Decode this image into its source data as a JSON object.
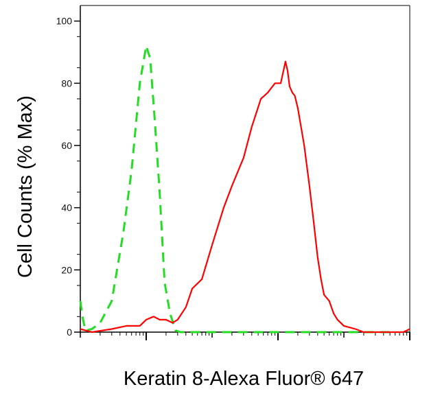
{
  "chart_data": {
    "type": "line",
    "xlabel": "Keratin 8-Alexa Fluor® 647",
    "ylabel": "Cell Counts (% Max)",
    "xscale": "log",
    "xlim": [
      0.1,
      10000
    ],
    "ylim": [
      0,
      105
    ],
    "y_ticks": [
      0,
      20,
      40,
      60,
      80,
      100
    ],
    "y_tick_labels": [
      "0",
      "20",
      "40",
      "60",
      "80",
      "100"
    ],
    "x_major_ticks": [
      1,
      100,
      10000
    ],
    "x_tick_labels_shown": false,
    "grid": false,
    "legend": "none",
    "series": [
      {
        "color": "#22dd22",
        "style": "dashed",
        "x": [
          0.1,
          0.11,
          0.12,
          0.15,
          0.2,
          0.3,
          0.45,
          0.6,
          0.8,
          1.0,
          1.15,
          1.35,
          1.6,
          1.9,
          2.3,
          2.8,
          3.3,
          4,
          10,
          100,
          1000,
          5000
        ],
        "y": [
          10,
          4,
          0.5,
          1,
          3,
          10,
          32,
          52,
          80,
          92,
          88,
          68,
          45,
          16,
          6,
          0.5,
          0,
          0,
          0,
          0,
          0,
          0
        ]
      },
      {
        "color": "#ff0000",
        "style": "solid",
        "x": [
          0.1,
          0.15,
          0.3,
          0.5,
          0.8,
          1.0,
          1.3,
          1.6,
          2.0,
          2.5,
          3.0,
          4.0,
          5.0,
          7.0,
          10,
          15,
          20,
          30,
          40,
          55,
          70,
          90,
          110,
          130,
          140,
          150,
          165,
          180,
          200,
          250,
          300,
          350,
          400,
          450,
          500,
          600,
          700,
          800,
          1000,
          1500,
          2000,
          3000,
          5000,
          8000,
          10000
        ],
        "y": [
          1,
          0,
          1,
          2,
          2,
          4,
          5,
          4,
          4,
          3,
          4,
          8,
          14,
          17,
          28,
          40,
          47,
          56,
          66,
          75,
          77,
          80,
          80,
          87,
          84,
          79,
          77,
          76,
          72,
          60,
          47,
          35,
          24,
          17,
          12,
          10,
          6,
          4,
          2,
          1,
          0,
          0,
          0,
          0,
          1
        ]
      }
    ]
  }
}
